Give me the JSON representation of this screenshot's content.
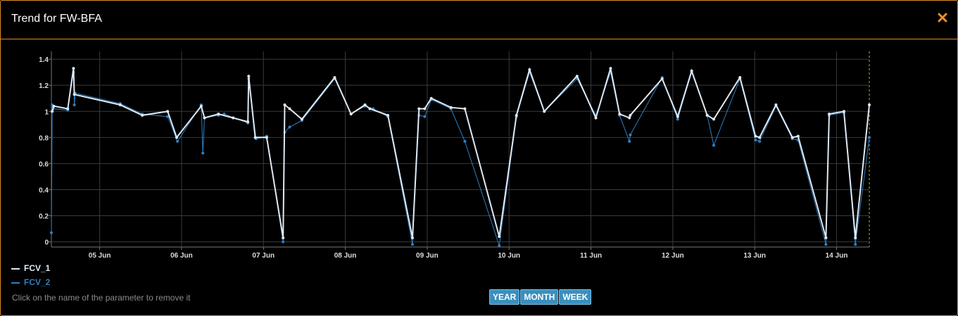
{
  "header": {
    "title": "Trend for FW-BFA"
  },
  "chart_data": {
    "type": "line",
    "xlim": [
      4.41,
      14.4
    ],
    "xticks": [
      {
        "value": 5,
        "label": "05 Jun"
      },
      {
        "value": 6,
        "label": "06 Jun"
      },
      {
        "value": 7,
        "label": "07 Jun"
      },
      {
        "value": 8,
        "label": "08 Jun"
      },
      {
        "value": 9,
        "label": "09 Jun"
      },
      {
        "value": 10,
        "label": "10 Jun"
      },
      {
        "value": 11,
        "label": "11 Jun"
      },
      {
        "value": 12,
        "label": "12 Jun"
      },
      {
        "value": 13,
        "label": "13 Jun"
      },
      {
        "value": 14,
        "label": "14 Jun"
      }
    ],
    "ylim": [
      -0.04,
      1.46
    ],
    "yticks": [
      0,
      0.2,
      0.4,
      0.6,
      0.8,
      1,
      1.2,
      1.4
    ],
    "grid": true,
    "series": [
      {
        "name": "FCV_1",
        "color": "#dfe9f3",
        "x": [
          4.42,
          4.44,
          4.61,
          4.68,
          4.69,
          5.25,
          5.52,
          5.83,
          5.94,
          6.24,
          6.28,
          6.45,
          6.63,
          6.81,
          6.82,
          6.9,
          7.04,
          7.24,
          7.26,
          7.32,
          7.47,
          7.87,
          8.07,
          8.24,
          8.3,
          8.52,
          8.82,
          8.9,
          8.97,
          9.05,
          9.29,
          9.46,
          9.88,
          10.09,
          10.25,
          10.43,
          10.83,
          11.06,
          11.24,
          11.35,
          11.47,
          11.48,
          11.87,
          12.06,
          12.23,
          12.42,
          12.5,
          12.82,
          13.01,
          13.06,
          13.26,
          13.46,
          13.53,
          13.87,
          13.91,
          14.09,
          14.23,
          14.4
        ],
        "values": [
          1.0,
          1.04,
          1.02,
          1.33,
          1.13,
          1.05,
          0.97,
          1.0,
          0.8,
          1.04,
          0.95,
          0.98,
          0.95,
          0.92,
          1.27,
          0.8,
          0.8,
          0.03,
          1.05,
          1.02,
          0.94,
          1.26,
          0.98,
          1.05,
          1.02,
          0.97,
          0.03,
          1.02,
          1.02,
          1.1,
          1.03,
          1.02,
          0.04,
          0.97,
          1.32,
          1.0,
          1.27,
          0.95,
          1.33,
          0.98,
          0.95,
          0.97,
          1.25,
          0.96,
          1.31,
          0.97,
          0.94,
          1.26,
          0.81,
          0.8,
          1.05,
          0.8,
          0.81,
          0.03,
          0.98,
          1.0,
          0.03,
          1.05
        ]
      },
      {
        "name": "FCV_2",
        "color": "#2f7fc1",
        "x": [
          4.41,
          4.42,
          4.43,
          4.61,
          4.68,
          4.69,
          4.7,
          5.25,
          5.52,
          5.83,
          5.95,
          6.24,
          6.26,
          6.28,
          6.45,
          6.52,
          6.81,
          6.82,
          6.91,
          7.04,
          7.24,
          7.26,
          7.32,
          7.47,
          7.87,
          8.07,
          8.24,
          8.34,
          8.52,
          8.82,
          8.9,
          8.97,
          9.05,
          9.29,
          9.46,
          9.88,
          10.09,
          10.25,
          10.43,
          10.83,
          11.06,
          11.24,
          11.35,
          11.47,
          11.48,
          11.87,
          12.06,
          12.23,
          12.42,
          12.5,
          12.82,
          13.01,
          13.06,
          13.26,
          13.46,
          13.53,
          13.87,
          13.91,
          14.09,
          14.23,
          14.4
        ],
        "values": [
          0.07,
          1.05,
          1.02,
          1.01,
          1.3,
          1.05,
          1.14,
          1.06,
          0.98,
          0.96,
          0.77,
          1.05,
          0.68,
          0.95,
          0.97,
          0.98,
          0.91,
          1.25,
          0.79,
          0.81,
          0.0,
          0.84,
          0.88,
          0.93,
          1.25,
          0.98,
          1.04,
          1.02,
          0.96,
          -0.02,
          0.97,
          0.96,
          1.09,
          1.02,
          0.77,
          -0.03,
          0.96,
          1.3,
          1.0,
          1.25,
          0.97,
          1.3,
          0.97,
          0.77,
          0.82,
          1.26,
          0.94,
          1.3,
          0.97,
          0.74,
          1.25,
          0.78,
          0.77,
          1.04,
          0.79,
          0.78,
          -0.02,
          0.97,
          0.99,
          -0.02,
          0.8
        ]
      }
    ]
  },
  "hint": "Click on the name of the parameter to remove it",
  "buttons": [
    "YEAR",
    "MONTH",
    "WEEK"
  ]
}
